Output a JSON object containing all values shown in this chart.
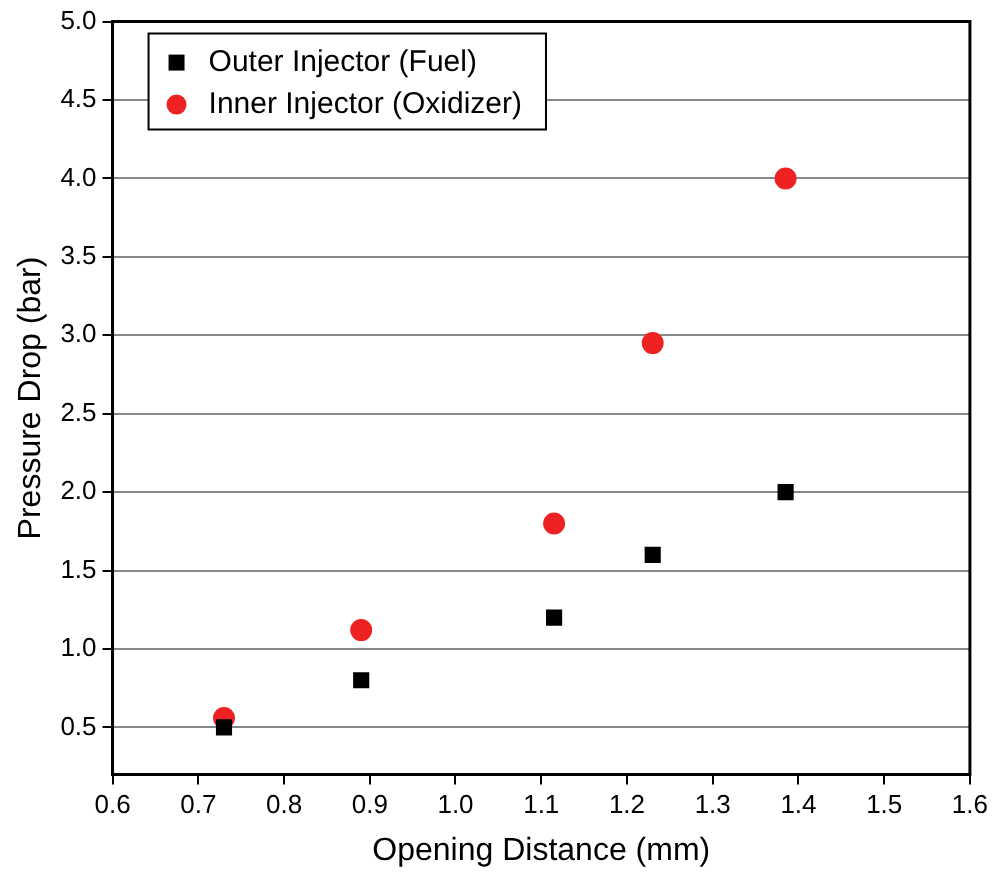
{
  "chart_data": {
    "type": "scatter",
    "xlabel": "Opening Distance (mm)",
    "ylabel": "Pressure Drop (bar)",
    "x": [
      0.73,
      0.89,
      1.115,
      1.23,
      1.385
    ],
    "series": [
      {
        "name": "Outer Injector (Fuel)",
        "color": "#000000",
        "marker": "square",
        "values": [
          0.5,
          0.8,
          1.2,
          1.6,
          2.0
        ]
      },
      {
        "name": "Inner Injector (Oxidizer)",
        "color": "#ee2222",
        "marker": "circle",
        "values": [
          0.56,
          1.12,
          1.8,
          2.95,
          4.0
        ]
      }
    ],
    "xlim": [
      0.6,
      1.6
    ],
    "xticks": [
      0.6,
      0.7,
      0.8,
      0.9,
      {
        "value": 1.0,
        "label": "1.0"
      },
      1.1,
      1.2,
      1.3,
      1.4,
      1.5,
      1.6
    ],
    "ylim": [
      0.2,
      5.0
    ],
    "yticks": [
      0.5,
      {
        "value": 1.0,
        "label": "1.0"
      },
      1.5,
      {
        "value": 2.0,
        "label": "2.0"
      },
      2.5,
      {
        "value": 3.0,
        "label": "3.0"
      },
      3.5,
      {
        "value": 4.0,
        "label": "4.0"
      },
      4.5,
      {
        "value": 5.0,
        "label": "5.0"
      }
    ],
    "grid": "y",
    "legend": "top left"
  }
}
